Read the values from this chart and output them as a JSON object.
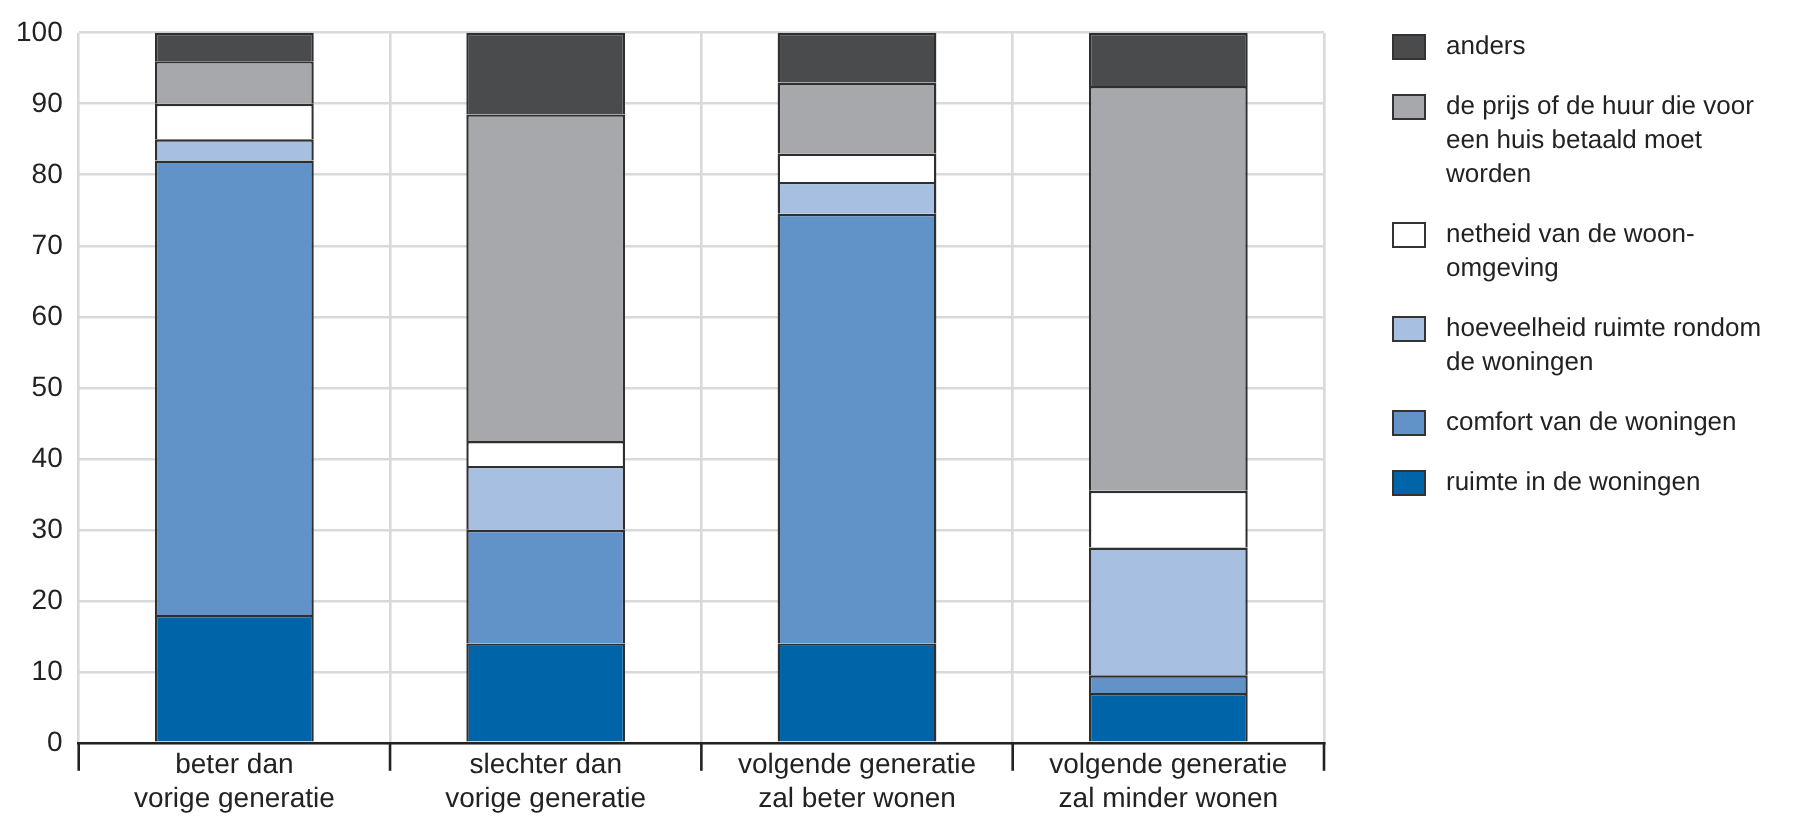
{
  "chart_data": {
    "type": "bar",
    "stacked": true,
    "categories": [
      "beter dan vorige generatie",
      "slechter dan vorige generatie",
      "volgende generatie zal beter wonen",
      "volgende generatie zal minder wonen"
    ],
    "series": [
      {
        "name": "ruimte in de woningen",
        "color": "#0064a8",
        "values": [
          18,
          14,
          14,
          7
        ]
      },
      {
        "name": "comfort van de woningen",
        "color": "#6193c8",
        "values": [
          64,
          16,
          60.5,
          2.5
        ]
      },
      {
        "name": "hoeveelheid ruimte rondom de woningen",
        "color": "#a7bfe0",
        "values": [
          3,
          9,
          4.5,
          18
        ]
      },
      {
        "name": "netheid van de woon-omgeving",
        "color": "#ffffff",
        "values": [
          5,
          3.5,
          4,
          8
        ]
      },
      {
        "name": "de prijs of de huur die voor een huis betaald moet worden",
        "color": "#a7a8ab",
        "values": [
          6,
          46,
          10,
          57
        ]
      },
      {
        "name": "anders",
        "color": "#4a4b4d",
        "values": [
          4,
          11.5,
          7,
          7.5
        ]
      }
    ],
    "ylim": [
      0,
      100
    ],
    "yticks": [
      0,
      10,
      20,
      30,
      40,
      50,
      60,
      70,
      80,
      90,
      100
    ],
    "grid": true,
    "legend": "right"
  }
}
